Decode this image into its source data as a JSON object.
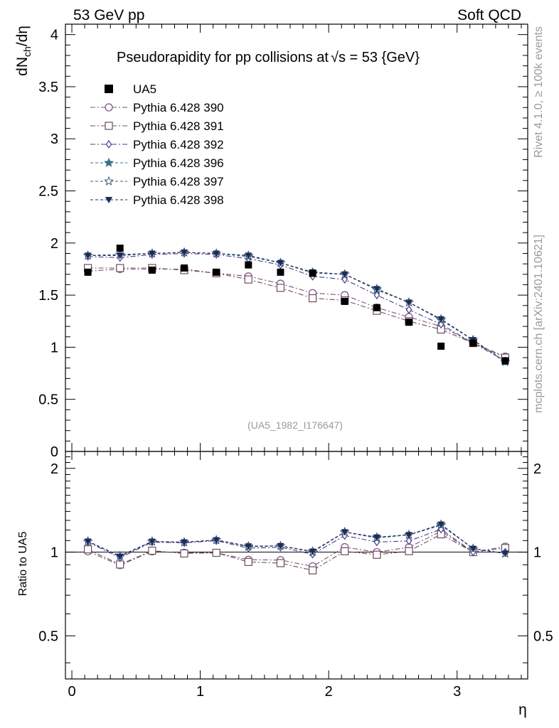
{
  "header": {
    "left_label": "53 GeV pp",
    "right_label": "Soft QCD"
  },
  "side": {
    "rivet_label": "Rivet 4.1.0, ≥ 100k events",
    "mcplots_label": "mcplots.cern.ch [arXiv:2401.10621]"
  },
  "chart_data": {
    "type": "scatter",
    "title": "Pseudorapidity for pp collisions at √s = 53 {GeV}",
    "title_prefix": "Pseudorapidity for pp collisions at",
    "title_root": "s",
    "title_suffix": " = 53 {GeV}",
    "analysis_tag": "(UA5_1982_I176647)",
    "xlabel": "η",
    "ylabel": "dN_ch/dη",
    "ylabel_main": "dN",
    "ylabel_sub": "ch",
    "ylabel_tail": "/dη",
    "ratio_ylabel": "Ratio to UA5",
    "xlim": [
      -0.05,
      3.55
    ],
    "ylim": [
      0,
      4.1
    ],
    "ratio_ylim": [
      0.35,
      2.3
    ],
    "xticks": [
      0,
      1,
      2,
      3
    ],
    "xtick_labels": [
      "0",
      "1",
      "2",
      "3"
    ],
    "yticks": [
      0,
      0.5,
      1,
      1.5,
      2,
      2.5,
      3,
      3.5,
      4
    ],
    "ytick_labels": [
      "0",
      "0.5",
      "1",
      "1.5",
      "2",
      "2.5",
      "3",
      "3.5",
      "4"
    ],
    "ratio_yticks": [
      0.5,
      1,
      2
    ],
    "ratio_ytick_labels": [
      "0.5",
      "1",
      "2"
    ],
    "legend_position": "top-left",
    "x": [
      0.125,
      0.375,
      0.625,
      0.875,
      1.125,
      1.375,
      1.625,
      1.875,
      2.125,
      2.375,
      2.625,
      2.875,
      3.125,
      3.375
    ],
    "data": {
      "name": "UA5",
      "values": [
        1.72,
        1.95,
        1.74,
        1.76,
        1.72,
        1.79,
        1.72,
        1.71,
        1.44,
        1.38,
        1.24,
        1.01,
        1.04,
        0.87
      ]
    },
    "series": [
      {
        "name": "Pythia 6.428 390",
        "color": "#7b4f7e",
        "marker": "circle-open",
        "dash": "7,3,2,3",
        "values": [
          1.73,
          1.75,
          1.75,
          1.75,
          1.71,
          1.68,
          1.61,
          1.52,
          1.5,
          1.38,
          1.29,
          1.2,
          1.04,
          0.91
        ]
      },
      {
        "name": "Pythia 6.428 391",
        "color": "#6e4d5e",
        "marker": "square-open",
        "dash": "7,3,2,3",
        "values": [
          1.76,
          1.76,
          1.76,
          1.74,
          1.71,
          1.65,
          1.57,
          1.47,
          1.45,
          1.35,
          1.25,
          1.17,
          1.04,
          0.9
        ]
      },
      {
        "name": "Pythia 6.428 392",
        "color": "#4a3a8c",
        "marker": "diamond-open",
        "dash": "7,3,2,3",
        "values": [
          1.87,
          1.86,
          1.89,
          1.9,
          1.89,
          1.85,
          1.79,
          1.68,
          1.65,
          1.5,
          1.36,
          1.22,
          1.04,
          0.87
        ]
      },
      {
        "name": "Pythia 6.428 396",
        "color": "#3c6e88",
        "marker": "star-filled",
        "dash": "4,3",
        "values": [
          1.88,
          1.89,
          1.9,
          1.91,
          1.9,
          1.87,
          1.81,
          1.71,
          1.7,
          1.55,
          1.43,
          1.26,
          1.07,
          0.86
        ]
      },
      {
        "name": "Pythia 6.428 397",
        "color": "#3c5878",
        "marker": "star-open",
        "dash": "4,3",
        "values": [
          1.88,
          1.89,
          1.9,
          1.91,
          1.9,
          1.88,
          1.81,
          1.72,
          1.7,
          1.56,
          1.43,
          1.27,
          1.07,
          0.86
        ]
      },
      {
        "name": "Pythia 6.428 398",
        "color": "#1e2a5a",
        "marker": "triangle-down-filled",
        "dash": "4,3",
        "values": [
          1.88,
          1.88,
          1.9,
          1.91,
          1.9,
          1.88,
          1.81,
          1.72,
          1.7,
          1.56,
          1.43,
          1.27,
          1.07,
          0.86
        ]
      }
    ]
  }
}
